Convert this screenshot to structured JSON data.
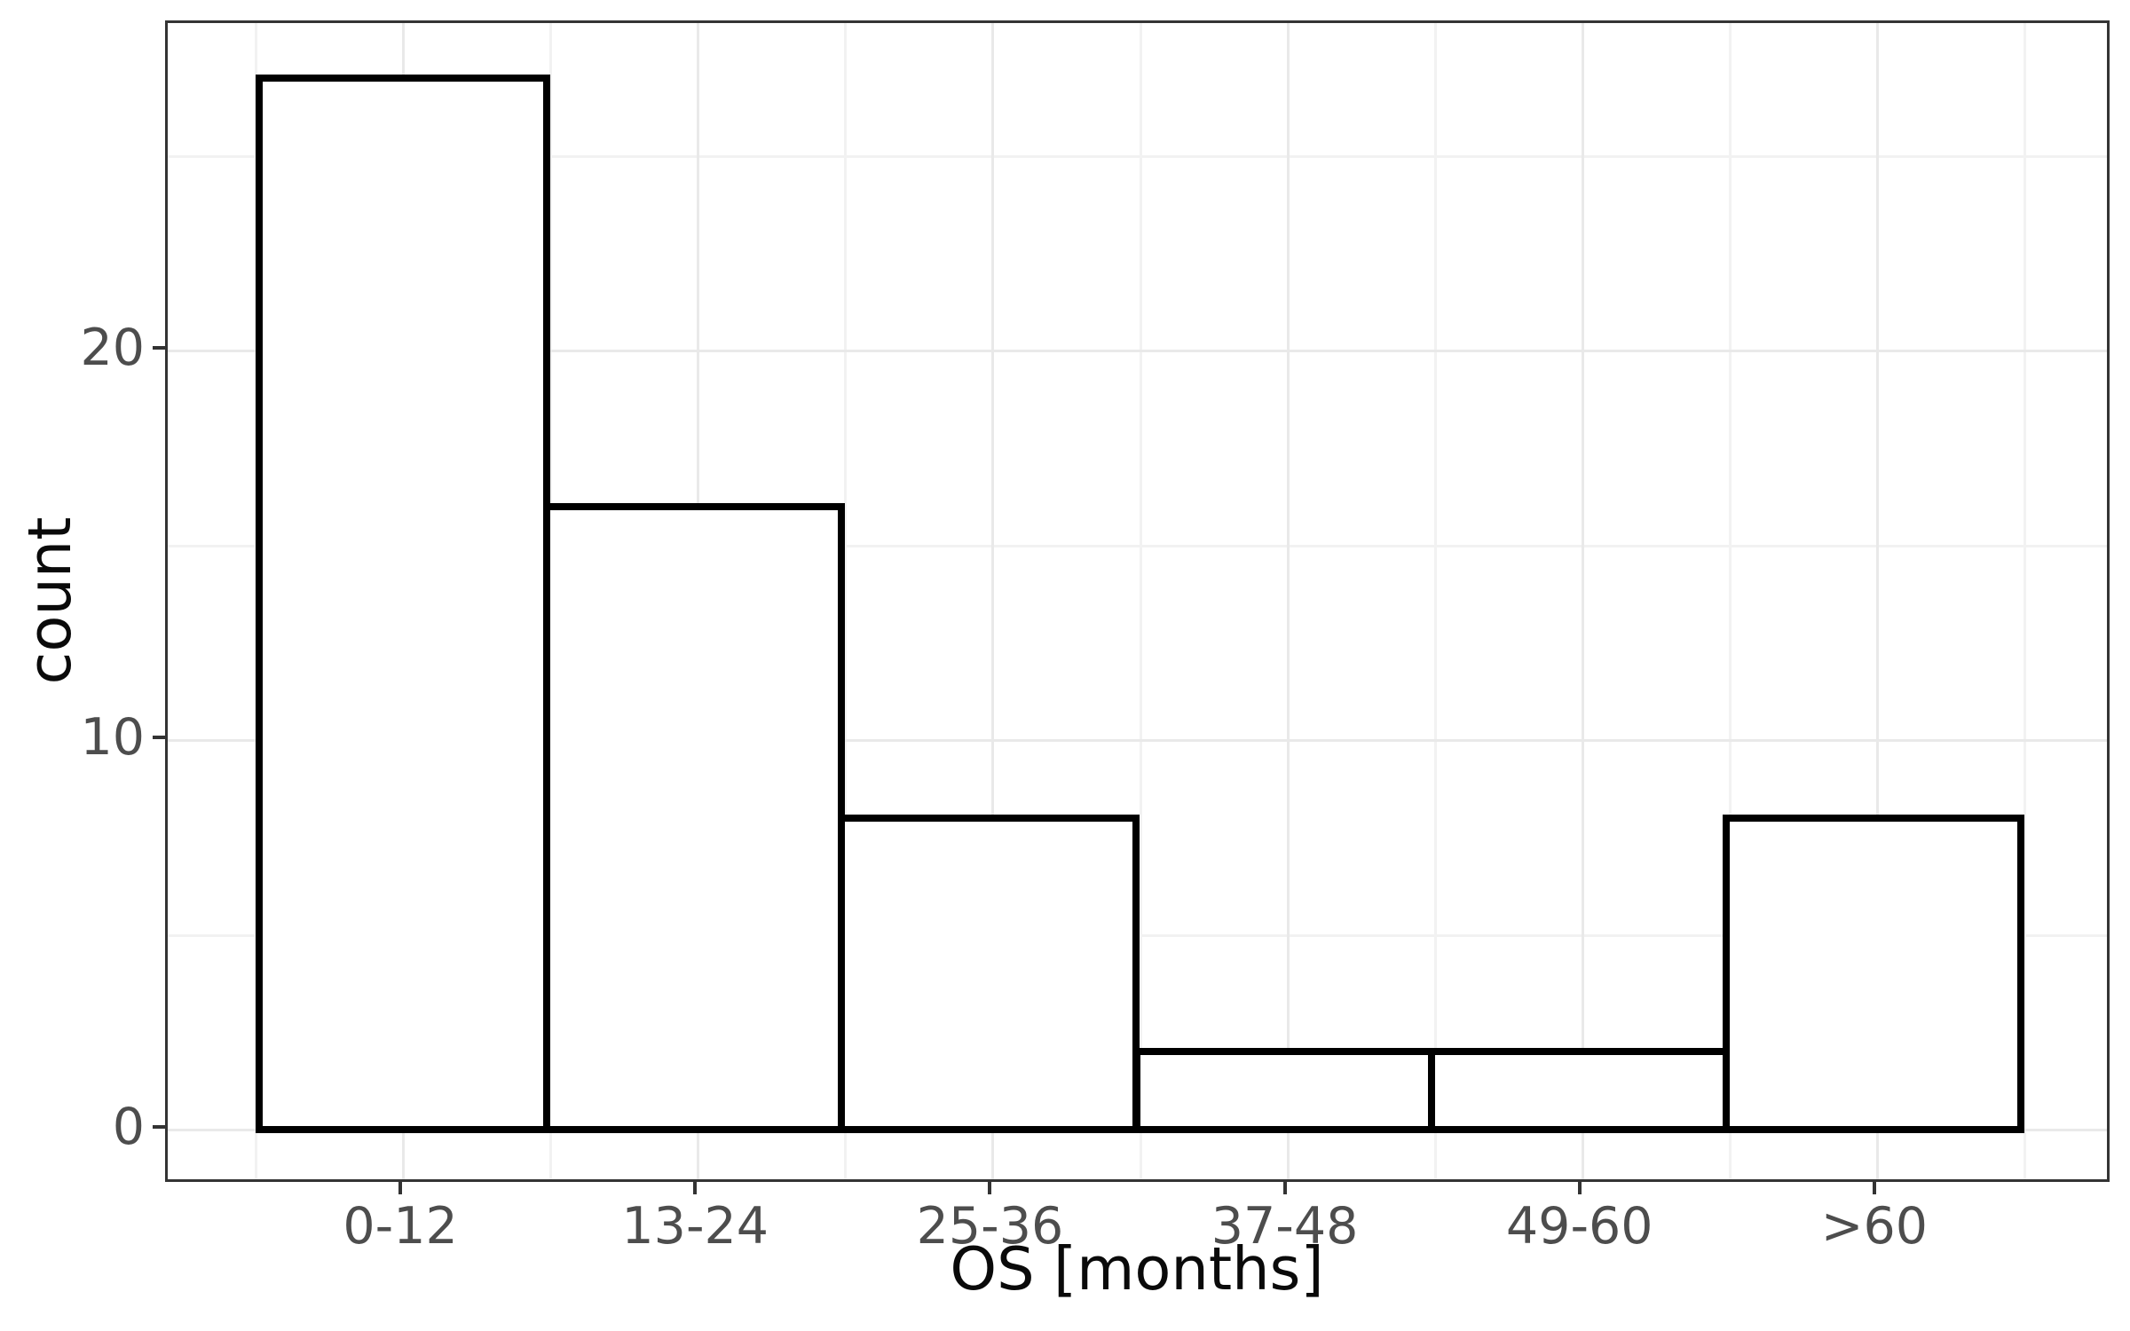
{
  "chart_data": {
    "type": "bar",
    "subtype": "histogram",
    "title": "",
    "xlabel": "OS [months]",
    "ylabel": "count",
    "categories": [
      "0-12",
      "13-24",
      "25-36",
      "37-48",
      "49-60",
      ">60"
    ],
    "values": [
      27,
      16,
      8,
      2,
      2,
      8
    ],
    "y_major_ticks": [
      0,
      10,
      20
    ],
    "y_minor_ticks": [
      5,
      15,
      25
    ],
    "ylim": [
      -1.35,
      28.35
    ],
    "grid": "on",
    "legend": "none",
    "bar_fill": "#ffffff",
    "bar_stroke": "#000000",
    "panel_border_color": "#343434",
    "axis_text_color": "#4d4d4d",
    "axis_title_color": "#0a0a0a",
    "grid_major_color": "#e9e9e9",
    "grid_minor_color": "#f2f2f2",
    "background_color": "#ffffff"
  }
}
